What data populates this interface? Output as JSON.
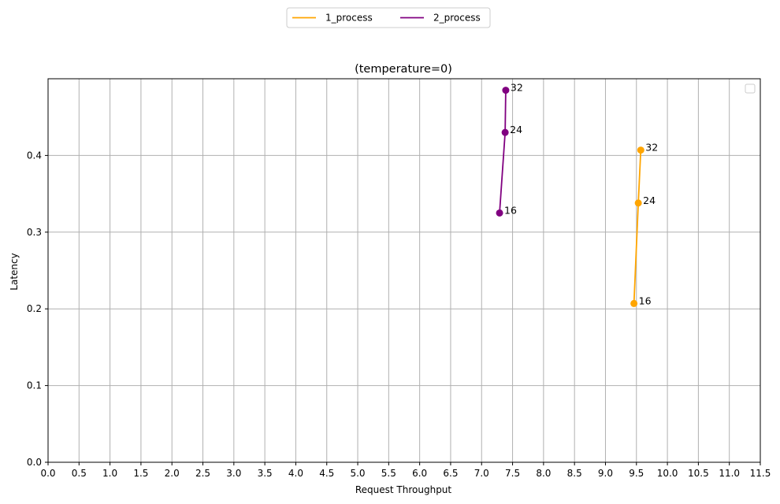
{
  "chart_data": {
    "type": "line",
    "title": "(temperature=0)",
    "xlabel": "Request Throughput",
    "ylabel": "Latency",
    "xlim": [
      0,
      11.5
    ],
    "ylim": [
      0,
      0.5
    ],
    "xticks": [
      "0.0",
      "0.5",
      "1.0",
      "1.5",
      "2.0",
      "2.5",
      "3.0",
      "3.5",
      "4.0",
      "4.5",
      "5.0",
      "5.5",
      "6.0",
      "6.5",
      "7.0",
      "7.5",
      "8.0",
      "8.5",
      "9.0",
      "9.5",
      "10.0",
      "10.5",
      "11.0",
      "11.5"
    ],
    "yticks": [
      "0.0",
      "0.1",
      "0.2",
      "0.3",
      "0.4"
    ],
    "grid": true,
    "legend_position": "top-center",
    "series": [
      {
        "name": "1_process",
        "color": "#FFA500",
        "marker": "circle",
        "points": [
          {
            "x": 9.46,
            "y": 0.207,
            "label": "16"
          },
          {
            "x": 9.53,
            "y": 0.338,
            "label": "24"
          },
          {
            "x": 9.57,
            "y": 0.407,
            "label": "32"
          }
        ]
      },
      {
        "name": "2_process",
        "color": "#800080",
        "marker": "circle",
        "points": [
          {
            "x": 7.29,
            "y": 0.325,
            "label": "16"
          },
          {
            "x": 7.38,
            "y": 0.43,
            "label": "24"
          },
          {
            "x": 7.39,
            "y": 0.485,
            "label": "32"
          }
        ]
      }
    ]
  }
}
